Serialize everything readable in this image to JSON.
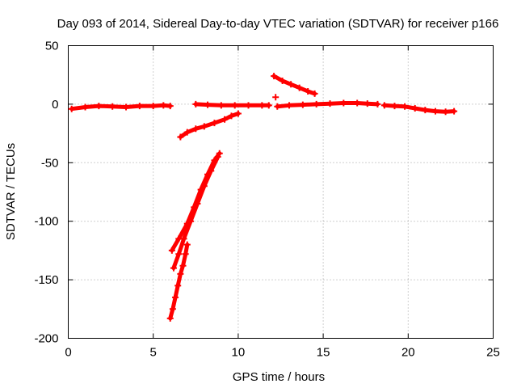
{
  "chart_data": {
    "type": "scatter",
    "title": "Day 093 of 2014, Sidereal Day-to-day VTEC variation (SDTVAR) for receiver p166",
    "xlabel": "GPS time / hours",
    "ylabel": "SDTVAR / TECUs",
    "xlim": [
      0,
      25
    ],
    "ylim": [
      -200,
      50
    ],
    "xticks": [
      0,
      5,
      10,
      15,
      20,
      25
    ],
    "yticks": [
      50,
      0,
      -50,
      -100,
      -150,
      -200
    ],
    "grid": true,
    "marker": "+",
    "color": "#ff0000",
    "series": [
      {
        "name": "segment-1",
        "x": [
          0.2,
          1.0,
          1.8,
          2.6,
          3.4,
          4.2,
          5.0,
          5.6,
          6.0
        ],
        "y": [
          -4,
          -2.5,
          -1.5,
          -2,
          -2.5,
          -1.5,
          -1.5,
          -1,
          -1.5
        ]
      },
      {
        "name": "segment-2",
        "x": [
          7.5,
          8.2,
          9.0,
          9.8,
          10.6,
          11.4,
          11.8
        ],
        "y": [
          0,
          -0.5,
          -1,
          -1,
          -1,
          -1,
          -1
        ]
      },
      {
        "name": "segment-3",
        "x": [
          6.6,
          7.0,
          7.5,
          8.0,
          8.6,
          9.2,
          9.6,
          10.0
        ],
        "y": [
          -28,
          -24,
          -21,
          -19,
          -16,
          -13,
          -10,
          -8
        ]
      },
      {
        "name": "segment-4",
        "x": [
          6.1,
          6.5,
          7.0,
          7.4,
          7.8,
          8.2,
          8.6,
          8.9
        ],
        "y": [
          -125,
          -115,
          -102,
          -88,
          -73,
          -60,
          -48,
          -42
        ]
      },
      {
        "name": "segment-5",
        "x": [
          6.2,
          6.5,
          6.8,
          7.2,
          7.6,
          8.0,
          8.4,
          8.8
        ],
        "y": [
          -140,
          -128,
          -115,
          -100,
          -85,
          -70,
          -57,
          -45
        ]
      },
      {
        "name": "segment-6",
        "x": [
          6.0,
          6.15,
          6.3,
          6.45,
          6.6,
          6.75,
          6.9,
          7.0
        ],
        "y": [
          -183,
          -175,
          -165,
          -155,
          -145,
          -138,
          -128,
          -120
        ]
      },
      {
        "name": "segment-7",
        "x": [
          12.1,
          12.6,
          13.1,
          13.6,
          14.1,
          14.5
        ],
        "y": [
          24,
          20,
          17,
          14,
          11,
          9
        ]
      },
      {
        "name": "segment-8",
        "x": [
          12.2
        ],
        "y": [
          6
        ]
      },
      {
        "name": "segment-9",
        "x": [
          12.3,
          13.0,
          13.8,
          14.6,
          15.4,
          16.2,
          17.0,
          17.6,
          18.2
        ],
        "y": [
          -2,
          -1,
          -0.5,
          0,
          0.5,
          1,
          1,
          0.5,
          0
        ]
      },
      {
        "name": "segment-10",
        "x": [
          18.6,
          19.2,
          19.8,
          20.4,
          21.0,
          21.6,
          22.2,
          22.7
        ],
        "y": [
          -1,
          -1.5,
          -2,
          -3.5,
          -5,
          -6,
          -6.5,
          -6
        ]
      }
    ]
  }
}
